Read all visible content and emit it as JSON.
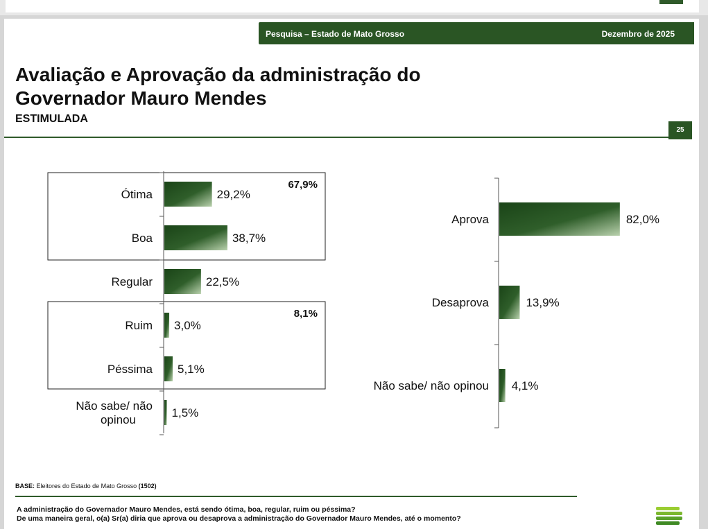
{
  "header": {
    "left": "Pesquisa – Estado de Mato Grosso",
    "right": "Dezembro de 2025"
  },
  "slide": {
    "title_line1": "Avaliação e Aprovação da administração do",
    "title_line2": "Governador Mauro Mendes",
    "subtitle": "ESTIMULADA",
    "page_number": "25"
  },
  "footer": {
    "base_label": "BASE:",
    "base_text": "Eleitores do Estado de Mato Grosso",
    "base_count": "(1502)",
    "question1": "A administração do Governador Mauro Mendes, está sendo ótima, boa, regular, ruim ou péssima?",
    "question2": "De uma maneira geral, o(a) Sr(a) diria que aprova ou desaprova a administração do Governador Mauro Mendes, até o momento?"
  },
  "colors": {
    "accent": "#2a5524",
    "bar_dark": "#1f4a1c",
    "bar_light": "#9fbf8f"
  },
  "chart_data": [
    {
      "type": "bar",
      "orientation": "horizontal",
      "categories": [
        "Ótima",
        "Boa",
        "Regular",
        "Ruim",
        "Péssima",
        "Não sabe/ não opinou"
      ],
      "values": [
        29.2,
        38.7,
        22.5,
        3.0,
        5.1,
        1.5
      ],
      "value_labels": [
        "29,2%",
        "38,7%",
        "22,5%",
        "3,0%",
        "5,1%",
        "1,5%"
      ],
      "groups": [
        {
          "members": [
            "Ótima",
            "Boa"
          ],
          "total_label": "67,9%"
        },
        {
          "members": [
            "Ruim",
            "Péssima"
          ],
          "total_label": "8,1%"
        }
      ],
      "xlim": [
        0,
        100
      ]
    },
    {
      "type": "bar",
      "orientation": "horizontal",
      "categories": [
        "Aprova",
        "Desaprova",
        "Não sabe/ não opinou"
      ],
      "values": [
        82.0,
        13.9,
        4.1
      ],
      "value_labels": [
        "82,0%",
        "13,9%",
        "4,1%"
      ],
      "xlim": [
        0,
        100
      ]
    }
  ]
}
